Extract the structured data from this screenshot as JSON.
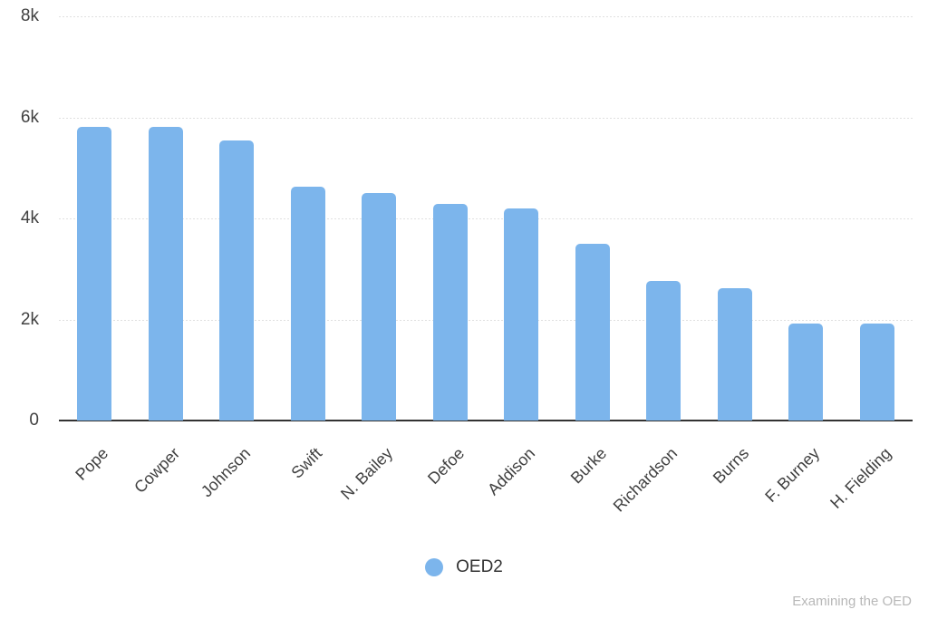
{
  "chart_data": {
    "type": "bar",
    "title": "",
    "xlabel": "",
    "ylabel": "",
    "categories": [
      "Pope",
      "Cowper",
      "Johnson",
      "Swift",
      "N. Bailey",
      "Defoe",
      "Addison",
      "Burke",
      "Richardson",
      "Burns",
      "F. Burney",
      "H. Fielding"
    ],
    "series": [
      {
        "name": "OED2",
        "values": [
          5810,
          5810,
          5540,
          4620,
          4500,
          4280,
          4190,
          3490,
          2770,
          2610,
          1920,
          1920
        ]
      }
    ],
    "ylim": [
      0,
      8000
    ],
    "yticks": [
      {
        "value": 0,
        "label": "0"
      },
      {
        "value": 2000,
        "label": "2k"
      },
      {
        "value": 4000,
        "label": "4k"
      },
      {
        "value": 6000,
        "label": "6k"
      },
      {
        "value": 8000,
        "label": "8k"
      }
    ],
    "grid": true,
    "legend_position": "bottom-center",
    "x_label_rotation_deg": -45
  },
  "legend": {
    "label": "OED2"
  },
  "watermark": {
    "text": "Examining the OED"
  },
  "colors": {
    "bar": "#7cb5ec",
    "legend_marker": "#7cb5ec",
    "axis_line": "#333333",
    "gridline": "#e0e0e0",
    "tick_text": "#404040",
    "watermark_text": "#b8b8b8",
    "background": "#ffffff"
  }
}
